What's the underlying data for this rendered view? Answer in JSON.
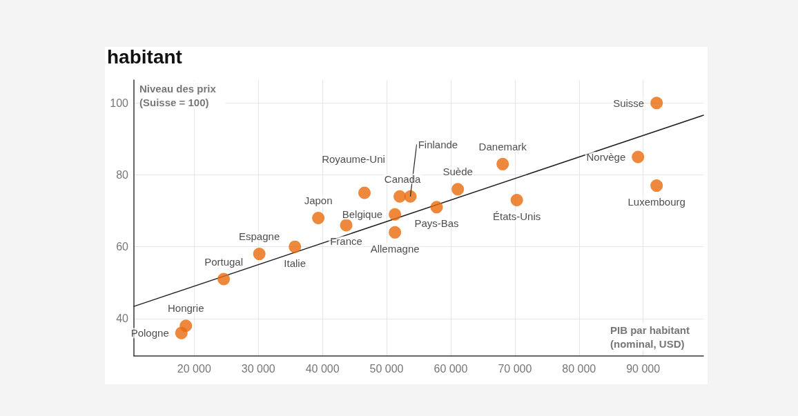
{
  "chart_data": {
    "type": "scatter",
    "title": "habitant",
    "xlabel": "PIB par habitant (nominal, USD)",
    "ylabel": "Niveau des prix (Suisse = 100)",
    "x": [
      18000,
      18700,
      24600,
      30150,
      35700,
      39350,
      43700,
      46550,
      51300,
      51300,
      52050,
      53700,
      57800,
      61100,
      68100,
      70300,
      89200,
      92100,
      92100
    ],
    "series": [
      {
        "color": "#ea6a0c",
        "values": [
          36,
          38,
          51,
          58,
          60,
          68,
          66,
          75,
          69,
          64,
          74,
          74,
          71,
          76,
          83,
          73,
          85,
          100,
          77
        ]
      },
      {
        "type": "line",
        "color": "#222222",
        "x": [
          10600,
          99400
        ],
        "values": [
          43.4,
          96.6
        ],
        "marker": "none",
        "line_style": "solid"
      }
    ],
    "annotations": [
      {
        "text": "Pologne",
        "x": 18000,
        "y": 36
      },
      {
        "text": "Hongrie",
        "x": 18700,
        "y": 38
      },
      {
        "text": "Portugal",
        "x": 24600,
        "y": 51
      },
      {
        "text": "Espagne",
        "x": 30150,
        "y": 58
      },
      {
        "text": "Italie",
        "x": 35700,
        "y": 60
      },
      {
        "text": "Japon",
        "x": 39350,
        "y": 68
      },
      {
        "text": "France",
        "x": 43700,
        "y": 66
      },
      {
        "text": "Royaume-Uni",
        "x": 46550,
        "y": 75
      },
      {
        "text": "Belgique",
        "x": 51300,
        "y": 69
      },
      {
        "text": "Allemagne",
        "x": 51300,
        "y": 64
      },
      {
        "text": "Canada",
        "x": 52050,
        "y": 74
      },
      {
        "text": "Finlande",
        "x": 53700,
        "y": 74
      },
      {
        "text": "Pays-Bas",
        "x": 57800,
        "y": 71
      },
      {
        "text": "Suède",
        "x": 61100,
        "y": 76
      },
      {
        "text": "Danemark",
        "x": 68100,
        "y": 83
      },
      {
        "text": "États-Unis",
        "x": 70300,
        "y": 73
      },
      {
        "text": "Norvège",
        "x": 89200,
        "y": 85
      },
      {
        "text": "Suisse",
        "x": 92100,
        "y": 100
      },
      {
        "text": "Luxembourg",
        "x": 92100,
        "y": 77
      }
    ],
    "xlim": [
      10600,
      99400
    ],
    "ylim": [
      29.6,
      106.4
    ],
    "xticks": [
      {
        "value": 20000,
        "label": "20 000"
      },
      {
        "value": 30000,
        "label": "30 000"
      },
      {
        "value": 40000,
        "label": "40 000"
      },
      {
        "value": 50000,
        "label": "50 000"
      },
      {
        "value": 60000,
        "label": "60 000"
      },
      {
        "value": 70000,
        "label": "70 000"
      },
      {
        "value": 80000,
        "label": "80 000"
      },
      {
        "value": 90000,
        "label": "90 000"
      }
    ],
    "yticks": [
      40,
      60,
      80,
      100
    ],
    "grid": true,
    "marker": "circle"
  }
}
